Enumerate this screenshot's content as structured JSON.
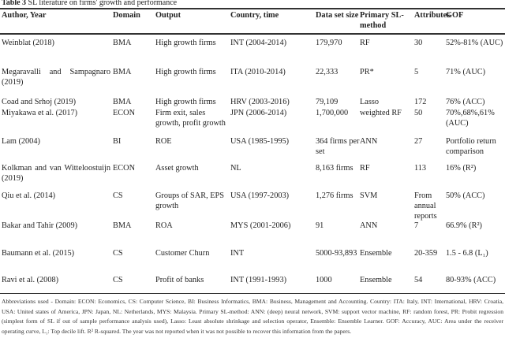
{
  "caption": {
    "label": "Table 3",
    "title": "SL literature on firms' growth and performance"
  },
  "columns": [
    "Author, Year",
    "Domain",
    "Output",
    "Country, time",
    "Data set size",
    "Primary SL-method",
    "Attributes",
    "GOF"
  ],
  "rows": [
    {
      "author": "Weinblat (2018)",
      "domain": "BMA",
      "output": "High growth firms",
      "country": "INT (2004-2014)",
      "size": "179,970",
      "method": "RF",
      "attributes": "30",
      "gof": "52%-81% (AUC)"
    },
    {
      "author": "Megaravalli and Sampagnaro (2019)",
      "domain": "BMA",
      "output": "High growth firms",
      "country": "ITA (2010-2014)",
      "size": "22,333",
      "method": "PR*",
      "attributes": "5",
      "gof": "71% (AUC)"
    },
    {
      "author": "Coad and Srhoj (2019)",
      "domain": "BMA",
      "output": "High growth firms",
      "country": "HRV (2003-2016)",
      "size": "79,109",
      "method": "Lasso",
      "attributes": "172",
      "gof": "76% (ACC)"
    },
    {
      "author": "Miyakawa et al. (2017)",
      "domain": "ECON",
      "output": "Firm exit, sales growth, profit growth",
      "country": "JPN (2006-2014)",
      "size": "1,700,000",
      "method": "weighted RF",
      "attributes": "50",
      "gof": "70%,68%,61% (AUC)"
    },
    {
      "author": "Lam (2004)",
      "domain": "BI",
      "output": "ROE",
      "country": "USA (1985-1995)",
      "size": "364 firms per set",
      "method": "ANN",
      "attributes": "27",
      "gof": "Portfolio return comparison"
    },
    {
      "author": "Kolkman and van Witteloostuijn (2019)",
      "domain": "ECON",
      "output": "Asset growth",
      "country": "NL",
      "size": "8,163 firms",
      "method": "RF",
      "attributes": "113",
      "gof": "16% (R²)"
    },
    {
      "author": "Qiu et al. (2014)",
      "domain": "CS",
      "output": "Groups of SAR, EPS growth",
      "country": "USA (1997-2003)",
      "size": "1,276 firms",
      "method": "SVM",
      "attributes": "From annual reports",
      "gof": "50% (ACC)"
    },
    {
      "author": "Bakar and Tahir (2009)",
      "domain": "BMA",
      "output": "ROA",
      "country": "MYS (2001-2006)",
      "size": "91",
      "method": "ANN",
      "attributes": "7",
      "gof": "66.9% (R²)"
    },
    {
      "author": "Baumann et al. (2015)",
      "domain": "CS",
      "output": "Customer Churn",
      "country": "INT",
      "size": "5000-93,893",
      "method": "Ensemble",
      "attributes": "20-359",
      "gof": "1.5 - 6.8 (L₁)"
    },
    {
      "author": "Ravi et al. (2008)",
      "domain": "CS",
      "output": "Profit of banks",
      "country": "INT (1991-1993)",
      "size": "1000",
      "method": "Ensemble",
      "attributes": "54",
      "gof": "80-93% (ACC)"
    }
  ],
  "footnote": "Abbreviations used - Domain: ECON: Economics, CS: Computer Science, BI: Business Informatics, BMA: Business, Management and Accounting. Country: ITA: Italy, INT: International, HRV: Croatia, USA: United states of America, JPN: Japan, NL: Netherlands, MYS: Malaysia. Primary SL-method: ANN: (deep) neural network, SVM: support vector machine, RF: random forest, PR: Probit regression (simplest form of SL if out of sample performance analysis used), Lasso: Least absolute shrinkage and selection operator, Ensemble: Ensemble Learner. GOF: Accuracy, AUC: Area under the receiver operating curve, L₁: Top decile lift. R² R-squared. The year was not reported when it was not possible to recover this information from the papers."
}
